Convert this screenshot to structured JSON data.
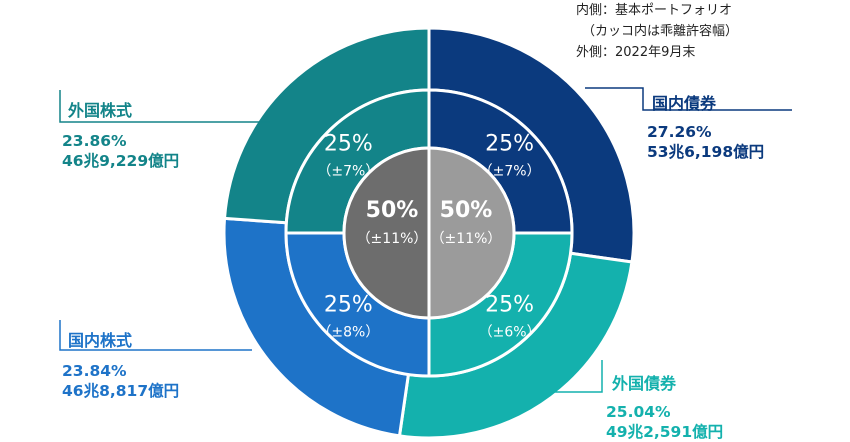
{
  "notes": {
    "inner": "内側：基本ポートフォリオ",
    "inner_sub": "（カッコ内は乖離許容幅）",
    "outer": "外側：2022年9月末"
  },
  "colors": {
    "domestic_bonds": "#0b3a7e",
    "foreign_bonds": "#14b1ad",
    "domestic_stocks": "#1e73c8",
    "foreign_stocks": "#138489",
    "center_left": "#6d6d6d",
    "center_right": "#9b9b9b"
  },
  "chart_data": {
    "type": "pie",
    "outer_ring": {
      "label": "外側：2022年9月末",
      "categories": [
        "国内債券",
        "外国債券",
        "国内株式",
        "外国株式"
      ],
      "values": [
        27.26,
        25.04,
        23.84,
        23.86
      ],
      "amounts": [
        "53兆6,198億円",
        "49兆2,591億円",
        "46兆8,817億円",
        "46兆9,229億円"
      ],
      "value_labels": [
        "27.26%",
        "25.04%",
        "23.84%",
        "23.86%"
      ]
    },
    "middle_ring": {
      "label": "内側：基本ポートフォリオ",
      "categories": [
        "国内債券",
        "外国債券",
        "国内株式",
        "外国株式"
      ],
      "values": [
        25,
        25,
        25,
        25
      ],
      "value_labels": [
        "25%",
        "25%",
        "25%",
        "25%"
      ],
      "ranges": [
        "（±7%）",
        "（±6%）",
        "（±8%）",
        "（±7%）"
      ]
    },
    "center": {
      "values": [
        50,
        50
      ],
      "value_labels": [
        "50%",
        "50%"
      ],
      "ranges": [
        "（±11%）",
        "（±11%）"
      ]
    }
  }
}
